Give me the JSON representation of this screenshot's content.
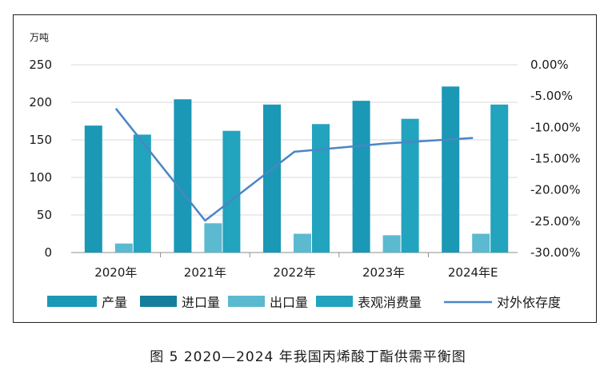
{
  "caption": "图 5  2020—2024 年我国丙烯酸丁酯供需平衡图",
  "chart_data": {
    "type": "bar",
    "unit_label": "万吨",
    "categories": [
      "2020年",
      "2021年",
      "2022年",
      "2023年",
      "2024年E"
    ],
    "series": [
      {
        "name": "产量",
        "type": "bar",
        "axis": "left",
        "color": "#1B98B5",
        "values": [
          169,
          204,
          197,
          202,
          221
        ]
      },
      {
        "name": "进口量",
        "type": "bar",
        "axis": "left",
        "color": "#137F9B",
        "values": [
          0,
          0,
          0,
          0,
          0
        ]
      },
      {
        "name": "出口量",
        "type": "bar",
        "axis": "left",
        "color": "#5BB9D0",
        "values": [
          12,
          39,
          25,
          23,
          25
        ]
      },
      {
        "name": "表观消费量",
        "type": "bar",
        "axis": "left",
        "color": "#22A3BE",
        "values": [
          157,
          162,
          171,
          178,
          197
        ]
      },
      {
        "name": "对外依存度",
        "type": "line",
        "axis": "right",
        "color": "#4A86C5",
        "values": [
          -7.0,
          -24.9,
          -13.9,
          -12.6,
          -11.7
        ]
      }
    ],
    "y_left": {
      "min": 0,
      "max": 250,
      "ticks": [
        "0",
        "50",
        "100",
        "150",
        "200",
        "250"
      ]
    },
    "y_right": {
      "min": -30,
      "max": 0,
      "ticks": [
        "0.00%",
        "-5.00%",
        "-10.00%",
        "-15.00%",
        "-20.00%",
        "-25.00%",
        "-30.00%"
      ]
    },
    "grid": true,
    "legend_position": "bottom"
  }
}
